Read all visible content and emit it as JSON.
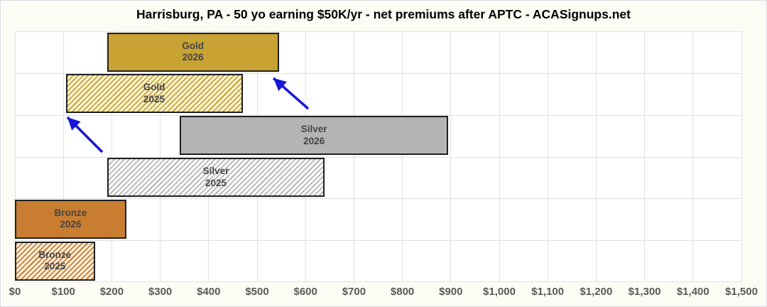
{
  "chart_data": {
    "type": "bar",
    "orientation": "horizontal_range",
    "title": "Harrisburg, PA - 50 yo earning $50K/yr - net premiums after APTC - ACASignups.net",
    "xlabel": "",
    "ylabel": "",
    "grid": true,
    "legend": false,
    "x_axis": {
      "min": 0,
      "max": 1500,
      "tick_step": 100,
      "tick_labels": [
        "$0",
        "$100",
        "$200",
        "$300",
        "$400",
        "$500",
        "$600",
        "$700",
        "$800",
        "$900",
        "$1,000",
        "$1,100",
        "$1,200",
        "$1,300",
        "$1,400",
        "$1,500"
      ]
    },
    "bars": [
      {
        "name": "Gold 2026",
        "metal": "gold",
        "year": "2026",
        "label": [
          "Gold",
          "2026"
        ],
        "style": "solid",
        "start": 190,
        "end": 545
      },
      {
        "name": "Gold 2025",
        "metal": "gold",
        "year": "2025",
        "label": [
          "Gold",
          "2025"
        ],
        "style": "hatched",
        "start": 105,
        "end": 470
      },
      {
        "name": "Silver 2026",
        "metal": "silver",
        "year": "2026",
        "label": [
          "Silver",
          "2026"
        ],
        "style": "solid",
        "start": 340,
        "end": 895
      },
      {
        "name": "Silver 2025",
        "metal": "silver",
        "year": "2025",
        "label": [
          "Silver",
          "2025"
        ],
        "style": "hatched",
        "start": 190,
        "end": 640
      },
      {
        "name": "Bronze 2026",
        "metal": "bronze",
        "year": "2026",
        "label": [
          "Bronze",
          "2026"
        ],
        "style": "solid",
        "start": 0,
        "end": 230
      },
      {
        "name": "Bronze 2025",
        "metal": "bronze",
        "year": "2025",
        "label": [
          "Bronze",
          "2025"
        ],
        "style": "hatched",
        "start": 0,
        "end": 165
      }
    ],
    "annotations": [
      {
        "type": "arrow",
        "from": [
          433,
          152
        ],
        "to": [
          384,
          109
        ]
      },
      {
        "type": "arrow",
        "from": [
          143,
          213
        ],
        "to": [
          94,
          164
        ]
      }
    ],
    "colors": {
      "gold": "#C8A232",
      "bronze": "#C87D31",
      "silver": "#B4B4B4",
      "gold_hatch_bg": "#FCF5D8",
      "bronze_hatch_bg": "#FBF0DE",
      "silver_hatch_bg": "#FFFFFF",
      "bar_border": "#202020",
      "bar_label_text": "#454545",
      "gridline": "#E1E1E1",
      "axis_text": "#595959",
      "arrow": "#1616D6",
      "title_text": "#000000",
      "background": "#FCFCF4",
      "plot_background": "#FFFFFF"
    }
  }
}
